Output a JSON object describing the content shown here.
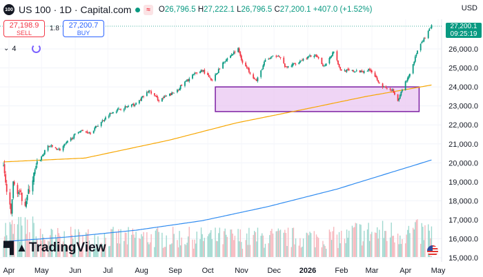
{
  "header": {
    "symbol_badge": "100",
    "title": "US 100 · 1D · Capital.com",
    "open_key": "O",
    "open": "26,796.5",
    "high_key": "H",
    "high": "27,222.1",
    "low_key": "L",
    "low": "26,796.5",
    "close_key": "C",
    "close": "27,200.1",
    "change": "+407.0 (+1.52%)",
    "wave_icon": "≈",
    "currency": "USD"
  },
  "trade": {
    "sell_price": "27,198.9",
    "sell_label": "SELL",
    "spread": "1.8",
    "buy_price": "27,200.7",
    "buy_label": "BUY"
  },
  "indicators": {
    "count": "4"
  },
  "logo": {
    "text": "TradingView"
  },
  "price_label": {
    "price": "27,200.1",
    "countdown": "09:25:19"
  },
  "colors": {
    "up": "#089981",
    "down": "#f23645",
    "ma_fast": "#f7a600",
    "ma_slow": "#2f8bf0",
    "zone_fill": "#e9c7f2",
    "zone_border": "#7b1fa2"
  },
  "chart_data": {
    "type": "candlestick",
    "months": [
      "Apr",
      "May",
      "Jun",
      "Jul",
      "Aug",
      "Sep",
      "Oct",
      "Nov",
      "Dec",
      "2026",
      "Feb",
      "Mar",
      "Apr",
      "May"
    ],
    "y_ticks": [
      "15,000.0",
      "16,000.0",
      "17,000.0",
      "18,000.0",
      "19,000.0",
      "20,000.0",
      "21,000.0",
      "22,000.0",
      "23,000.0",
      "24,000.0",
      "25,000.0",
      "26,000.0"
    ],
    "ylim": [
      14950,
      27650
    ],
    "close_path": [
      [
        "2025-04-01",
        19800
      ],
      [
        "2025-04-04",
        18500
      ],
      [
        "2025-04-08",
        17300
      ],
      [
        "2025-04-10",
        18900
      ],
      [
        "2025-04-21",
        17900
      ],
      [
        "2025-05-02",
        19900
      ],
      [
        "2025-05-12",
        20900
      ],
      [
        "2025-05-23",
        20700
      ],
      [
        "2025-06-10",
        21700
      ],
      [
        "2025-06-20",
        21600
      ],
      [
        "2025-07-10",
        22700
      ],
      [
        "2025-08-01",
        23100
      ],
      [
        "2025-08-13",
        23800
      ],
      [
        "2025-08-22",
        23300
      ],
      [
        "2025-09-05",
        23700
      ],
      [
        "2025-09-22",
        24600
      ],
      [
        "2025-10-01",
        24900
      ],
      [
        "2025-10-10",
        24300
      ],
      [
        "2025-10-20",
        25300
      ],
      [
        "2025-11-03",
        26000
      ],
      [
        "2025-11-07",
        25300
      ],
      [
        "2025-11-20",
        24300
      ],
      [
        "2025-11-28",
        25400
      ],
      [
        "2025-12-10",
        25700
      ],
      [
        "2025-12-17",
        25000
      ],
      [
        "2025-12-31",
        25400
      ],
      [
        "2026-01-12",
        25700
      ],
      [
        "2026-01-21",
        25100
      ],
      [
        "2026-01-30",
        25900
      ],
      [
        "2026-02-05",
        24900
      ],
      [
        "2026-02-20",
        24800
      ],
      [
        "2026-03-05",
        24900
      ],
      [
        "2026-03-16",
        24000
      ],
      [
        "2026-03-25",
        23800
      ],
      [
        "2026-03-30",
        23200
      ],
      [
        "2026-04-03",
        23900
      ],
      [
        "2026-04-10",
        24700
      ],
      [
        "2026-04-17",
        25900
      ],
      [
        "2026-04-24",
        26600
      ],
      [
        "2026-04-30",
        27200
      ]
    ],
    "ma_fast": [
      [
        "2025-04-01",
        20050
      ],
      [
        "2025-06-15",
        20250
      ],
      [
        "2025-09-01",
        21200
      ],
      [
        "2025-11-01",
        22100
      ],
      [
        "2026-01-01",
        22800
      ],
      [
        "2026-03-01",
        23500
      ],
      [
        "2026-04-30",
        24100
      ]
    ],
    "ma_slow": [
      [
        "2025-04-01",
        15850
      ],
      [
        "2025-06-01",
        16100
      ],
      [
        "2025-08-01",
        16450
      ],
      [
        "2025-10-01",
        16950
      ],
      [
        "2025-12-01",
        17700
      ],
      [
        "2026-02-01",
        18600
      ],
      [
        "2026-04-30",
        20150
      ]
    ],
    "zone": {
      "from": "2025-10-13",
      "to": "2026-04-30",
      "high": 24000,
      "low": 22700
    },
    "last_price": 27200.1,
    "volume": "present (relative scale)"
  }
}
